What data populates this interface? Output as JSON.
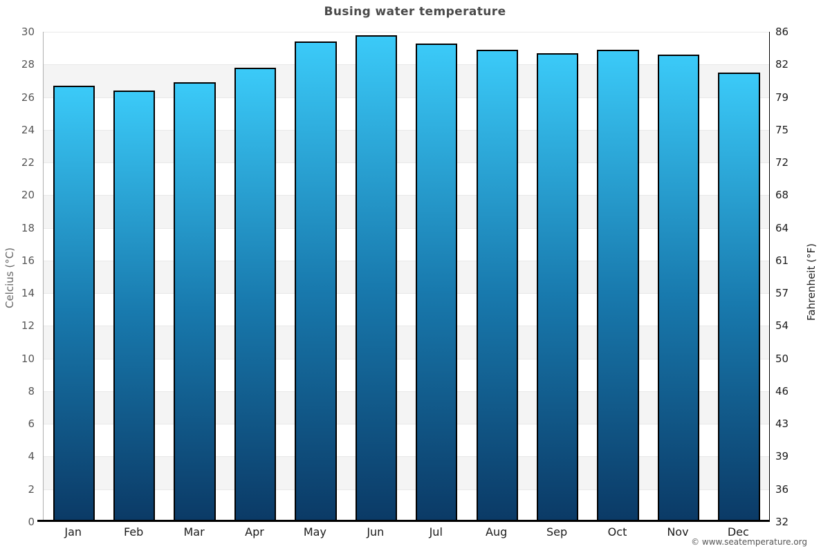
{
  "chart_data": {
    "type": "bar",
    "title": "Busing water temperature",
    "ylabel_left": "Celcius (°C)",
    "ylabel_right": "Fahrenheit (°F)",
    "categories": [
      "Jan",
      "Feb",
      "Mar",
      "Apr",
      "May",
      "Jun",
      "Jul",
      "Aug",
      "Sep",
      "Oct",
      "Nov",
      "Dec"
    ],
    "values_celsius": [
      26.7,
      26.4,
      26.9,
      27.8,
      29.4,
      29.8,
      29.3,
      28.9,
      28.7,
      28.9,
      28.6,
      27.5
    ],
    "ylim_celsius": [
      0,
      30
    ],
    "yticks_celsius": [
      30,
      28,
      26,
      24,
      22,
      20,
      18,
      16,
      14,
      12,
      10,
      8,
      6,
      4,
      2,
      0
    ],
    "yticks_fahrenheit": [
      86,
      82,
      79,
      75,
      72,
      68,
      64,
      61,
      57,
      54,
      50,
      46,
      43,
      39,
      36,
      32
    ],
    "grid": "horizontal-alternating-bands",
    "legend": "none",
    "colors": {
      "bar_gradient_top": "#3bcaf8",
      "bar_gradient_mid": "#1879ad",
      "bar_gradient_bottom": "#0b3a66",
      "bar_border": "#000000",
      "band_white": "#ffffff",
      "band_alt": "#f4f4f4",
      "gridline": "#e8e8e8",
      "axis_line": "#000000",
      "left_spine": "#b0b0b0",
      "title_color": "#4a4a4a"
    }
  },
  "footer": {
    "copyright": "© www.seatemperature.org"
  }
}
